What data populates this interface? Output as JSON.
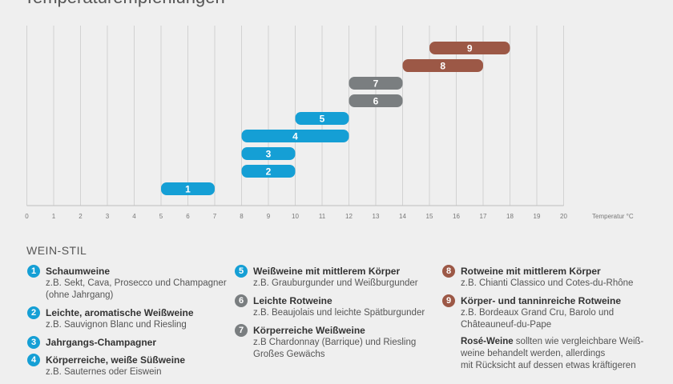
{
  "title": "Temperaturempfehlungen",
  "chart_data": {
    "type": "bar",
    "orientation": "horizontal-range",
    "xlabel": "Temperatur °C",
    "xlim": [
      0,
      20
    ],
    "x_ticks": [
      0,
      1,
      2,
      3,
      4,
      5,
      6,
      7,
      8,
      9,
      10,
      11,
      12,
      13,
      14,
      15,
      16,
      17,
      18,
      19,
      20
    ],
    "grid": "vertical",
    "bars": [
      {
        "label": "1",
        "start": 5,
        "end": 7,
        "color": "#159fd5"
      },
      {
        "label": "2",
        "start": 8,
        "end": 10,
        "color": "#159fd5"
      },
      {
        "label": "3",
        "start": 8,
        "end": 10,
        "color": "#159fd5"
      },
      {
        "label": "4",
        "start": 8,
        "end": 12,
        "color": "#159fd5"
      },
      {
        "label": "5",
        "start": 10,
        "end": 12,
        "color": "#159fd5"
      },
      {
        "label": "6",
        "start": 12,
        "end": 14,
        "color": "#7a7e80"
      },
      {
        "label": "7",
        "start": 12,
        "end": 14,
        "color": "#7a7e80"
      },
      {
        "label": "8",
        "start": 14,
        "end": 17,
        "color": "#9c5846"
      },
      {
        "label": "9",
        "start": 15,
        "end": 18,
        "color": "#9c5846"
      }
    ]
  },
  "legend": {
    "title": "WEIN-STIL",
    "col1": [
      {
        "num": "1",
        "color": "#159fd5",
        "title": "Schaumweine",
        "lines": [
          "z.B. Sekt, Cava, Prosecco und Champagner",
          "(ohne Jahrgang)"
        ]
      },
      {
        "num": "2",
        "color": "#159fd5",
        "title": "Leichte, aromatische Weißweine",
        "lines": [
          "z.B. Sauvignon Blanc und Riesling"
        ]
      },
      {
        "num": "3",
        "color": "#159fd5",
        "title": "Jahrgangs-Champagner",
        "lines": []
      },
      {
        "num": "4",
        "color": "#159fd5",
        "title": "Körperreiche, weiße Süßweine",
        "lines": [
          "z.B. Sauternes oder Eiswein"
        ]
      }
    ],
    "col2": [
      {
        "num": "5",
        "color": "#159fd5",
        "title": "Weißweine mit mittlerem Körper",
        "lines": [
          "z.B. Grauburgunder und Weißburgunder"
        ]
      },
      {
        "num": "6",
        "color": "#7a7e80",
        "title": "Leichte Rotweine",
        "lines": [
          "z.B. Beaujolais und leichte Spätburgunder"
        ]
      },
      {
        "num": "7",
        "color": "#7a7e80",
        "title": "Körperreiche Weißweine",
        "lines": [
          "z.B Chardonnay (Barrique) und Riesling",
          "Großes Gewächs"
        ]
      }
    ],
    "col3": [
      {
        "num": "8",
        "color": "#9c5846",
        "title": "Rotweine mit mittlerem Körper",
        "lines": [
          "z.B. Chianti Classico und Cotes-du-Rhône"
        ]
      },
      {
        "num": "9",
        "color": "#9c5846",
        "title": "Körper- und tanninreiche Rotweine",
        "lines": [
          "z.B. Bordeaux Grand Cru, Barolo und",
          "Châteauneuf-du-Pape"
        ]
      }
    ],
    "note": {
      "bold": "Rosé-Weine",
      "line1_rest": " sollten wie vergleichbare Weiß-",
      "line2": "weine behandelt werden, allerdings",
      "line3": "mit Rücksicht auf dessen etwas kräftigeren"
    }
  }
}
